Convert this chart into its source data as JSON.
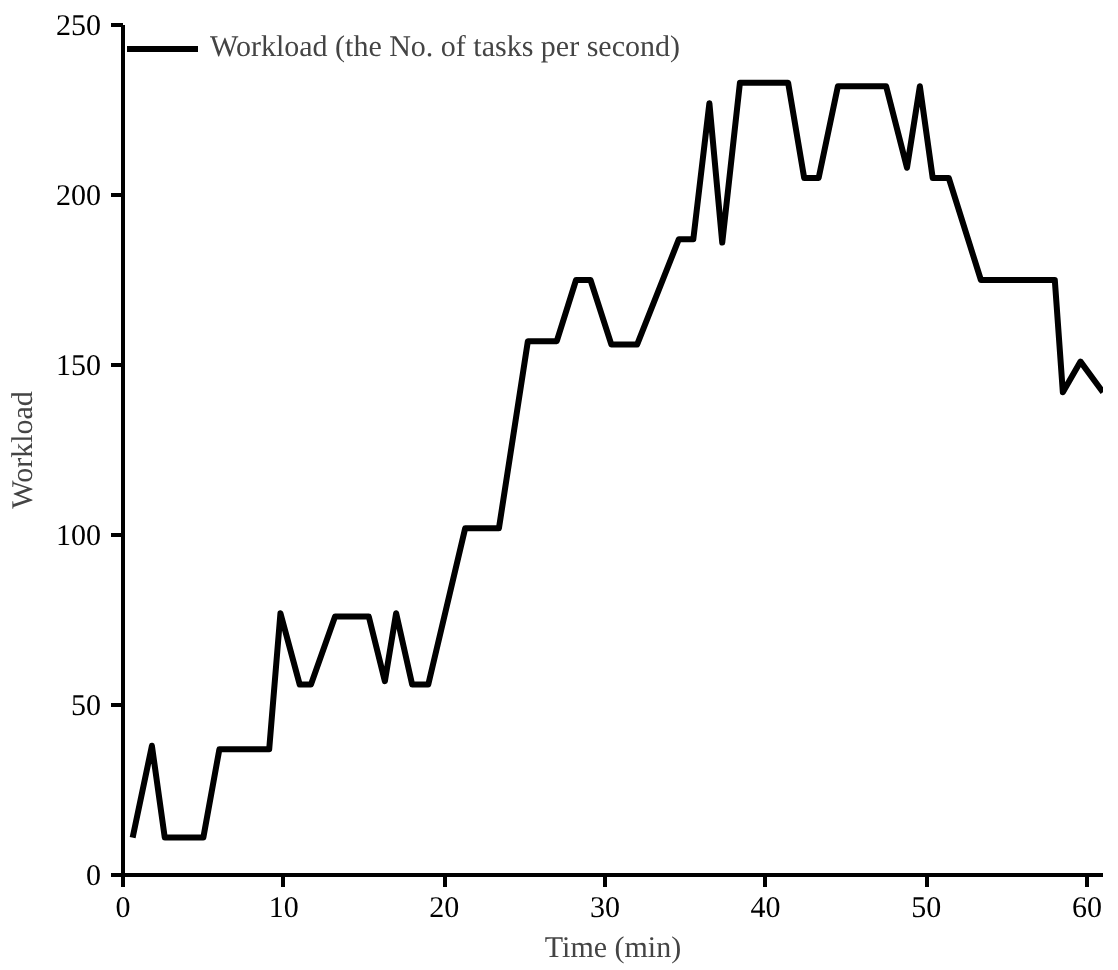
{
  "chart_data": {
    "type": "line",
    "xlabel": "Time (min)",
    "ylabel": "Workload",
    "x": [
      0.6,
      1.8,
      2.6,
      5,
      6,
      9.1,
      9.8,
      11,
      11.7,
      13.2,
      15.3,
      16.3,
      17,
      18,
      19,
      21.3,
      23.4,
      25.2,
      27,
      28.2,
      29.1,
      30.4,
      32,
      34.6,
      35.5,
      36.5,
      37.3,
      38.4,
      41.4,
      42.4,
      43.3,
      44.5,
      47.5,
      48.8,
      49.6,
      50.4,
      51.4,
      53.4,
      58,
      58.5,
      59.6,
      61
    ],
    "series": [
      {
        "name": "Workload (the No. of tasks per second)",
        "color": "#000000",
        "values": [
          11,
          38,
          11,
          11,
          37,
          37,
          77,
          56,
          56,
          76,
          76,
          57,
          77,
          56,
          56,
          102,
          102,
          157,
          157,
          175,
          175,
          156,
          156,
          187,
          187,
          227,
          186,
          233,
          233,
          205,
          205,
          232,
          232,
          208,
          232,
          205,
          205,
          175,
          175,
          142,
          151,
          142
        ]
      }
    ],
    "xlim": [
      0,
      61
    ],
    "ylim": [
      0,
      250
    ],
    "xticks": [
      0,
      10,
      20,
      30,
      40,
      50,
      60
    ],
    "yticks": [
      0,
      50,
      100,
      150,
      200,
      250
    ],
    "grid": false,
    "legend": "top left",
    "marker": "none",
    "line_style": "solid"
  }
}
